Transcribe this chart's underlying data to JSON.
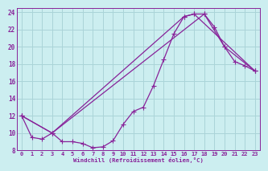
{
  "background_color": "#cceef0",
  "grid_color": "#aad4d8",
  "line_color": "#882299",
  "marker_color": "#882299",
  "xlabel": "Windchill (Refroidissement éolien,°C)",
  "xlim": [
    -0.5,
    23.5
  ],
  "ylim": [
    8,
    24.5
  ],
  "xticks": [
    0,
    1,
    2,
    3,
    4,
    5,
    6,
    7,
    8,
    9,
    10,
    11,
    12,
    13,
    14,
    15,
    16,
    17,
    18,
    19,
    20,
    21,
    22,
    23
  ],
  "yticks": [
    8,
    10,
    12,
    14,
    16,
    18,
    20,
    22,
    24
  ],
  "series0_x": [
    0,
    1,
    2,
    3,
    4,
    5,
    6,
    7,
    8,
    9,
    10,
    11,
    12,
    13,
    14,
    15,
    16,
    17,
    18,
    19,
    20,
    21,
    22,
    23
  ],
  "series0_y": [
    12,
    9.5,
    9.3,
    10,
    9,
    9,
    8.8,
    8.3,
    8.4,
    9.1,
    11,
    12.5,
    13.0,
    15.5,
    18.5,
    21.5,
    23.5,
    23.8,
    23.8,
    22.3,
    20.0,
    18.3,
    17.8,
    17.2
  ],
  "series1_x": [
    0,
    3,
    16,
    17,
    23
  ],
  "series1_y": [
    12,
    10,
    23.5,
    23.8,
    17.2
  ],
  "series2_x": [
    0,
    3,
    18,
    20,
    23
  ],
  "series2_y": [
    12,
    10,
    23.8,
    20.0,
    17.2
  ]
}
